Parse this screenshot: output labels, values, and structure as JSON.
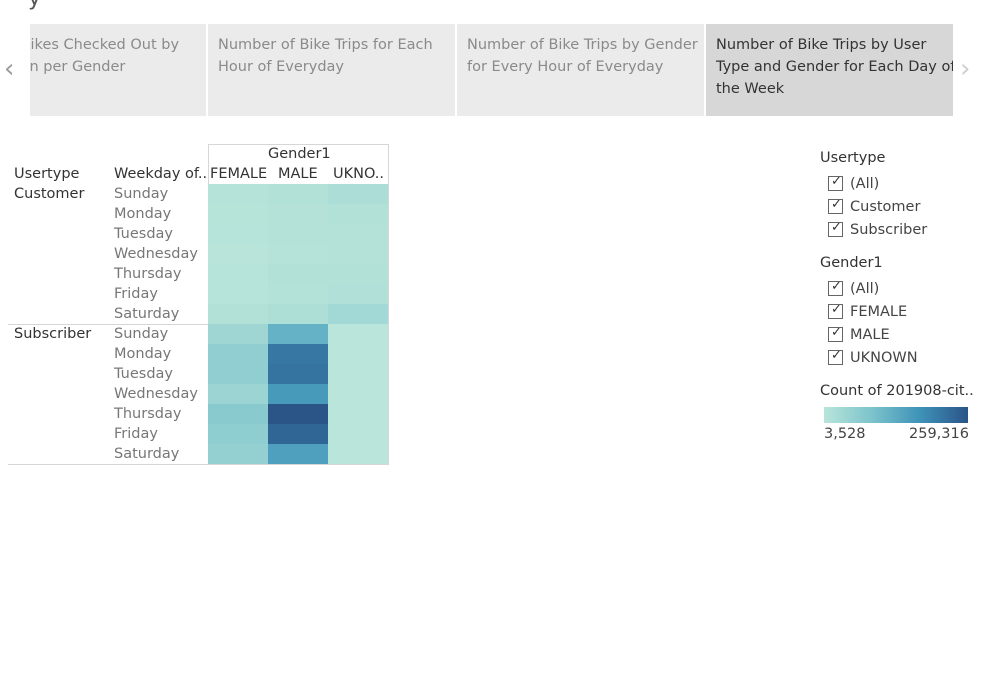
{
  "page_title": "y",
  "tabs": [
    {
      "label": "of Bikes Checked Out by\nation per Gender",
      "active": false
    },
    {
      "label": "Number of Bike Trips for Each\nHour of Everyday",
      "active": false
    },
    {
      "label": "Number of Bike Trips by Gender\nfor Every Hour of Everyday",
      "active": false
    },
    {
      "label": "Number of Bike Trips by User\nType and Gender for Each Day of\nthe Week",
      "active": true
    }
  ],
  "nav": {
    "prev_icon": "chevron-left-icon",
    "next_icon": "chevron-right-icon"
  },
  "table": {
    "column_group_header": "Gender1",
    "row_header_1": "Usertype",
    "row_header_2": "Weekday of..",
    "columns": [
      "FEMALE",
      "MALE",
      "UKNO.."
    ],
    "groups": [
      {
        "usertype": "Customer",
        "days": [
          "Sunday",
          "Monday",
          "Tuesday",
          "Wednesday",
          "Thursday",
          "Friday",
          "Saturday"
        ]
      },
      {
        "usertype": "Subscriber",
        "days": [
          "Sunday",
          "Monday",
          "Tuesday",
          "Wednesday",
          "Thursday",
          "Friday",
          "Saturday"
        ]
      }
    ]
  },
  "chart_data": {
    "type": "heatmap",
    "title": "",
    "x_field": "Gender1",
    "y_fields": [
      "Usertype",
      "Weekday of.."
    ],
    "columns": [
      "FEMALE",
      "MALE",
      "UKNO.."
    ],
    "rows": [
      {
        "usertype": "Customer",
        "weekday": "Sunday",
        "values": [
          8000,
          13000,
          22000
        ]
      },
      {
        "usertype": "Customer",
        "weekday": "Monday",
        "values": [
          7000,
          11000,
          13000
        ]
      },
      {
        "usertype": "Customer",
        "weekday": "Tuesday",
        "values": [
          6000,
          10000,
          11000
        ]
      },
      {
        "usertype": "Customer",
        "weekday": "Wednesday",
        "values": [
          5500,
          9000,
          10000
        ]
      },
      {
        "usertype": "Customer",
        "weekday": "Thursday",
        "values": [
          6500,
          13000,
          14000
        ]
      },
      {
        "usertype": "Customer",
        "weekday": "Friday",
        "values": [
          6000,
          12000,
          15000
        ]
      },
      {
        "usertype": "Customer",
        "weekday": "Saturday",
        "values": [
          13000,
          19000,
          35000
        ]
      },
      {
        "usertype": "Subscriber",
        "weekday": "Sunday",
        "values": [
          40000,
          120000,
          3528
        ]
      },
      {
        "usertype": "Subscriber",
        "weekday": "Monday",
        "values": [
          60000,
          210000,
          4000
        ]
      },
      {
        "usertype": "Subscriber",
        "weekday": "Tuesday",
        "values": [
          60000,
          215000,
          4000
        ]
      },
      {
        "usertype": "Subscriber",
        "weekday": "Wednesday",
        "values": [
          45000,
          160000,
          3800
        ]
      },
      {
        "usertype": "Subscriber",
        "weekday": "Thursday",
        "values": [
          70000,
          259316,
          4000
        ]
      },
      {
        "usertype": "Subscriber",
        "weekday": "Friday",
        "values": [
          62000,
          235000,
          4000
        ]
      },
      {
        "usertype": "Subscriber",
        "weekday": "Saturday",
        "values": [
          55000,
          150000,
          3900
        ]
      }
    ],
    "color_range": [
      3528,
      259316
    ],
    "color_ramp": [
      "#b9e5da",
      "#7cc3cc",
      "#3e92b8",
      "#2b5487"
    ]
  },
  "filters": [
    {
      "title": "Usertype",
      "options": [
        "(All)",
        "Customer",
        "Subscriber"
      ],
      "checked": [
        true,
        true,
        true
      ]
    },
    {
      "title": "Gender1",
      "options": [
        "(All)",
        "FEMALE",
        "MALE",
        "UKNOWN"
      ],
      "checked": [
        true,
        true,
        true,
        true
      ]
    }
  ],
  "color_legend": {
    "title": "Count of 201908-cit..",
    "min_label": "3,528",
    "max_label": "259,316"
  }
}
